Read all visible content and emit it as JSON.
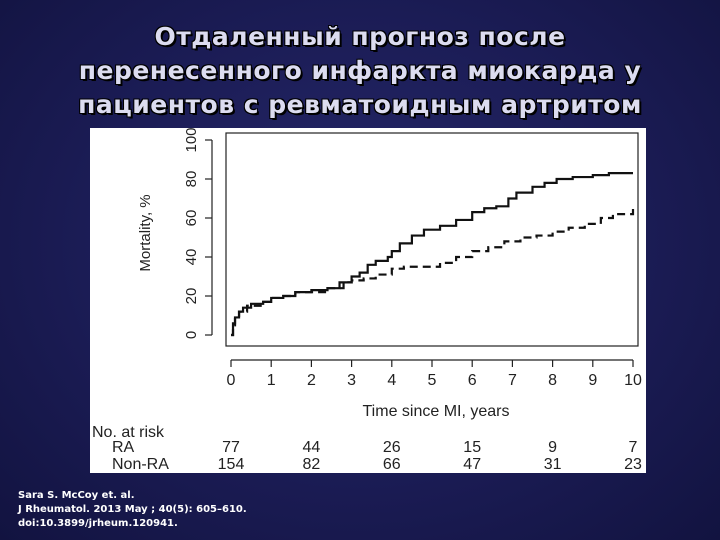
{
  "slide": {
    "title_lines": [
      "Отдаленный прогноз после",
      "перенесенного инфаркта миокарда у",
      "пациентов с ревматоидным артритом"
    ],
    "citation_lines": [
      "Sara S. McCoy et. al.",
      "J Rheumatol. 2013 May ; 40(5): 605–610.",
      "doi:10.3899/jrheum.120941."
    ]
  },
  "chart_data": {
    "type": "line",
    "title": "",
    "xlabel": "Time since MI, years",
    "ylabel": "Mortality, %",
    "xlim": [
      0,
      10
    ],
    "ylim": [
      0,
      100
    ],
    "x_ticks": [
      0,
      1,
      2,
      3,
      4,
      5,
      6,
      7,
      8,
      9,
      10
    ],
    "y_ticks": [
      0,
      20,
      40,
      60,
      80,
      100
    ],
    "legend": "none",
    "grid": false,
    "series": [
      {
        "name": "",
        "line_style": "solid",
        "points": [
          [
            0,
            0
          ],
          [
            0.05,
            6
          ],
          [
            0.1,
            9
          ],
          [
            0.2,
            12
          ],
          [
            0.3,
            14
          ],
          [
            0.5,
            16
          ],
          [
            0.8,
            17
          ],
          [
            1,
            19
          ],
          [
            1.3,
            20
          ],
          [
            1.6,
            22
          ],
          [
            2,
            23
          ],
          [
            2.4,
            24
          ],
          [
            2.7,
            27
          ],
          [
            3,
            30
          ],
          [
            3.2,
            32
          ],
          [
            3.4,
            36
          ],
          [
            3.6,
            38
          ],
          [
            3.9,
            40
          ],
          [
            4,
            43
          ],
          [
            4.2,
            47
          ],
          [
            4.5,
            51
          ],
          [
            4.8,
            54
          ],
          [
            5.2,
            56
          ],
          [
            5.6,
            59
          ],
          [
            6,
            63
          ],
          [
            6.3,
            65
          ],
          [
            6.6,
            66
          ],
          [
            6.9,
            70
          ],
          [
            7.1,
            73
          ],
          [
            7.5,
            76
          ],
          [
            7.8,
            78
          ],
          [
            8.1,
            80
          ],
          [
            8.5,
            81
          ],
          [
            9,
            82
          ],
          [
            9.4,
            83
          ],
          [
            10,
            83
          ]
        ]
      },
      {
        "name": "",
        "line_style": "dashed",
        "points": [
          [
            0,
            0
          ],
          [
            0.05,
            5
          ],
          [
            0.1,
            9
          ],
          [
            0.2,
            12
          ],
          [
            0.4,
            15
          ],
          [
            0.8,
            17
          ],
          [
            1,
            19
          ],
          [
            1.3,
            20
          ],
          [
            1.6,
            22
          ],
          [
            2,
            22
          ],
          [
            2.4,
            24
          ],
          [
            2.8,
            27
          ],
          [
            3,
            28
          ],
          [
            3.3,
            29
          ],
          [
            3.6,
            31
          ],
          [
            4,
            34
          ],
          [
            4.3,
            35
          ],
          [
            4.8,
            35
          ],
          [
            5.2,
            37
          ],
          [
            5.6,
            40
          ],
          [
            6,
            43
          ],
          [
            6.4,
            45
          ],
          [
            6.8,
            48
          ],
          [
            7.2,
            50
          ],
          [
            7.6,
            51
          ],
          [
            8,
            53
          ],
          [
            8.4,
            55
          ],
          [
            8.8,
            57
          ],
          [
            9.2,
            60
          ],
          [
            9.5,
            62
          ],
          [
            10,
            65
          ]
        ]
      }
    ],
    "at_risk": {
      "header": "No. at risk",
      "x": [
        0,
        2,
        4,
        6,
        8,
        10
      ],
      "rows": [
        {
          "label": "RA",
          "values": [
            77,
            44,
            26,
            15,
            9,
            7
          ]
        },
        {
          "label": "Non-RA",
          "values": [
            154,
            82,
            66,
            47,
            31,
            23
          ]
        }
      ]
    }
  }
}
